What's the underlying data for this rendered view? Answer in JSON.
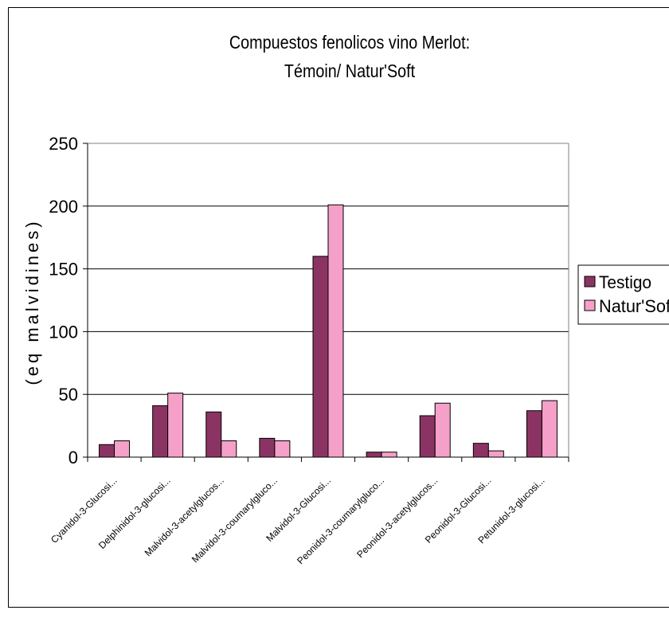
{
  "chart_data": {
    "type": "bar",
    "title_line1": "Compuestos fenolicos vino Merlot:",
    "title_line2": "Témoin/ Natur'Soft",
    "xlabel": "",
    "ylabel": "(eq malvidines)",
    "ylim": [
      0,
      250
    ],
    "yticks": [
      0,
      50,
      100,
      150,
      200,
      250
    ],
    "grid": true,
    "legend_position": "right",
    "categories": [
      "Cyanidol-3-Glucosi...",
      "Delphinidol-3-glucosi...",
      "Malvidol-3-acetylglucos...",
      "Malvidol-3-coumarylgluco...",
      "Malvidol-3-Glucosi...",
      "Peonidol-3-coumarylgluco...",
      "Peonidol-3-acetylglucos...",
      "Peonidol-3-Glucosi...",
      "Petunidol-3-glucosi..."
    ],
    "series": [
      {
        "name": "Testigo",
        "color": "#8b3464",
        "values": [
          10,
          41,
          36,
          15,
          160,
          4,
          33,
          11,
          37
        ]
      },
      {
        "name": "Natur'Soft",
        "color": "#f4a0c8",
        "values": [
          13,
          51,
          13,
          13,
          201,
          4,
          43,
          5,
          45
        ]
      }
    ]
  }
}
